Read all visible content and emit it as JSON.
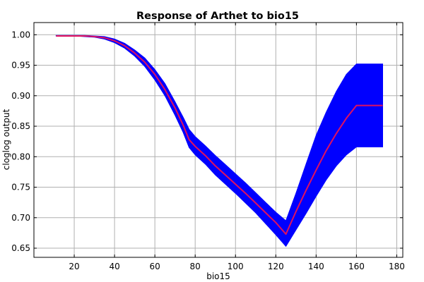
{
  "chart_data": {
    "type": "line",
    "title": "Response of Arthet to bio15",
    "xlabel": "bio15",
    "ylabel": "cloglog output",
    "xlim": [
      0,
      183
    ],
    "ylim": [
      0.635,
      1.02
    ],
    "x_ticks": [
      20,
      40,
      60,
      80,
      100,
      120,
      140,
      160,
      180
    ],
    "y_ticks": [
      0.65,
      0.7,
      0.75,
      0.8,
      0.85,
      0.9,
      0.95,
      1.0
    ],
    "x_tick_labels": [
      "20",
      "40",
      "60",
      "80",
      "100",
      "120",
      "140",
      "160",
      "180"
    ],
    "y_tick_labels": [
      "0.65",
      "0.70",
      "0.75",
      "0.80",
      "0.85",
      "0.90",
      "0.95",
      "1.00"
    ],
    "grid": true,
    "legend": "none",
    "series": [
      {
        "role": "mean",
        "color": "#e0115f",
        "x": [
          11,
          20,
          25,
          30,
          35,
          40,
          45,
          50,
          55,
          60,
          65,
          70,
          74,
          77,
          80,
          85,
          90,
          95,
          100,
          105,
          110,
          115,
          120,
          125,
          130,
          135,
          140,
          145,
          150,
          155,
          160,
          173
        ],
        "y": [
          0.998,
          0.998,
          0.998,
          0.997,
          0.995,
          0.99,
          0.982,
          0.97,
          0.955,
          0.935,
          0.91,
          0.88,
          0.852,
          0.828,
          0.817,
          0.802,
          0.785,
          0.77,
          0.755,
          0.74,
          0.724,
          0.708,
          0.692,
          0.673,
          0.71,
          0.745,
          0.778,
          0.81,
          0.838,
          0.863,
          0.884,
          0.884
        ]
      },
      {
        "role": "range",
        "color": "#0000ff",
        "x": [
          11,
          20,
          25,
          30,
          35,
          40,
          45,
          50,
          55,
          60,
          65,
          70,
          74,
          77,
          80,
          85,
          90,
          95,
          100,
          105,
          110,
          115,
          120,
          125,
          130,
          135,
          140,
          145,
          150,
          155,
          160,
          173
        ],
        "upper": [
          0.999,
          0.999,
          0.999,
          0.998,
          0.997,
          0.993,
          0.986,
          0.975,
          0.962,
          0.943,
          0.92,
          0.89,
          0.865,
          0.845,
          0.833,
          0.818,
          0.802,
          0.787,
          0.772,
          0.757,
          0.741,
          0.725,
          0.709,
          0.695,
          0.74,
          0.788,
          0.835,
          0.873,
          0.907,
          0.935,
          0.952,
          0.952
        ],
        "lower": [
          0.998,
          0.998,
          0.997,
          0.996,
          0.993,
          0.987,
          0.978,
          0.965,
          0.948,
          0.926,
          0.9,
          0.868,
          0.84,
          0.815,
          0.803,
          0.788,
          0.77,
          0.755,
          0.74,
          0.724,
          0.708,
          0.69,
          0.672,
          0.653,
          0.68,
          0.707,
          0.735,
          0.762,
          0.785,
          0.803,
          0.816,
          0.816
        ]
      }
    ]
  }
}
